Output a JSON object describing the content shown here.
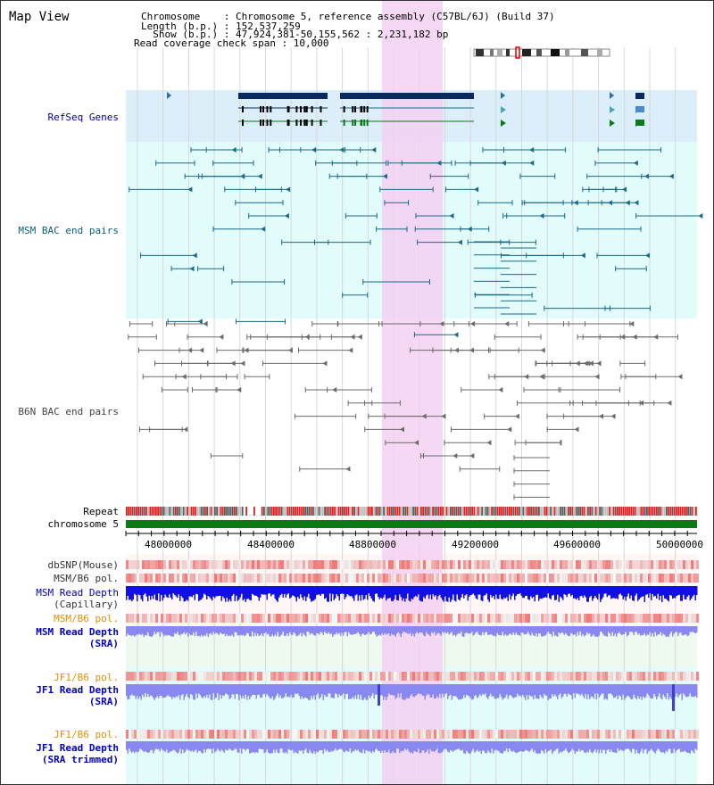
{
  "title": "Map View",
  "info": {
    "chromosome": "Chromosome    : Chromosome 5, reference assembly (C57BL/6J) (Build 37)",
    "length": "Length (b.p.) : 152,537,259",
    "show": "  Show (b.p.) : 47,924,381-50,155,562 : 2,231,182 bp",
    "span": "Read coverage check span : 10,000"
  },
  "tracks": {
    "refseq": "RefSeq Genes",
    "msm_bac": "MSM BAC end pairs",
    "b6n_bac": "B6N BAC end pairs",
    "repeat": "Repeat",
    "chromosome": "chromosome 5",
    "dbsnp": "dbSNP(Mouse)",
    "msm_b6_pol_1": "MSM/B6 pol.",
    "msm_depth_cap_1": "MSM Read Depth",
    "msm_depth_cap_2": "(Capillary)",
    "msm_b6_pol_2": "MSM/B6 pol.",
    "msm_depth_sra_1": "MSM Read Depth",
    "msm_depth_sra_2": "(SRA)",
    "jf1_b6_pol_1": "JF1/B6 pol.",
    "jf1_depth_sra_1": "JF1 Read Depth",
    "jf1_depth_sra_2": "(SRA)",
    "jf1_b6_pol_2": "JF1/B6 pol.",
    "jf1_depth_trim_1": "JF1 Read Depth",
    "jf1_depth_trim_2": "(SRA trimmed)"
  },
  "axis": {
    "ticks": [
      "48000000",
      "48400000",
      "48800000",
      "49200000",
      "49600000",
      "50000000"
    ]
  },
  "colors": {
    "refseq_bg": "#dceefa",
    "msm_bg": "#e2fbfb",
    "b6n_bg": "#ffffff",
    "highlight": "#f5d0f2",
    "gene_dark": "#0a2a5c",
    "gene_green": "#0a7a1a",
    "msm_pair": "#1a6a8a",
    "b6n_pair": "#6b6b6b",
    "chromosome": "#0b7a14",
    "repeat_red": "#e02020",
    "depth_capillary": "#1010e0",
    "depth_sra": "#8888f0",
    "label_black": "#000000",
    "label_teal": "#106070",
    "label_navy": "#0000aa",
    "label_orange": "#e09000",
    "label_blue": "#0000c0"
  }
}
